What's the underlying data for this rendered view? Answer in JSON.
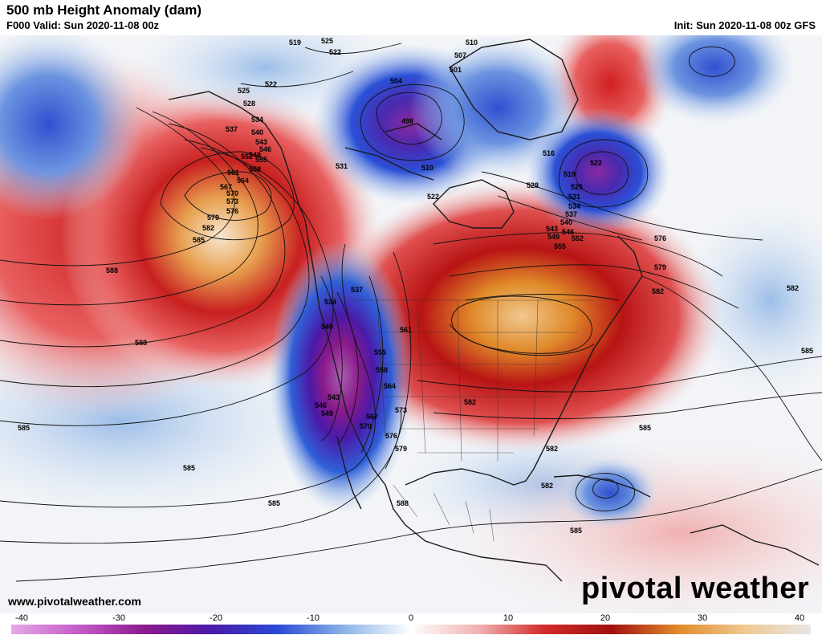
{
  "header": {
    "title": "500 mb Height Anomaly (dam)",
    "valid": "F000 Valid: Sun 2020-11-08 00z",
    "init": "Init: Sun 2020-11-08 00z GFS"
  },
  "footer": {
    "website": "www.pivotalweather.com",
    "brand": "pivotal weather"
  },
  "map": {
    "contour_labels": [
      "519",
      "525",
      "522",
      "522",
      "525",
      "528",
      "531",
      "534",
      "537",
      "540",
      "543",
      "546",
      "549",
      "552",
      "555",
      "558",
      "561",
      "564",
      "567",
      "570",
      "573",
      "576",
      "579",
      "582",
      "585",
      "588",
      "588",
      "585",
      "510",
      "507",
      "501",
      "504",
      "498",
      "510",
      "516",
      "519",
      "522",
      "528",
      "531",
      "534",
      "537",
      "540",
      "543",
      "546",
      "549",
      "552",
      "555",
      "522",
      "525",
      "576",
      "579",
      "582",
      "585",
      "582",
      "585",
      "537",
      "534",
      "540",
      "543",
      "546",
      "549",
      "555",
      "558",
      "561",
      "564",
      "567",
      "570",
      "573",
      "576",
      "579",
      "582",
      "582",
      "582",
      "585",
      "585",
      "588",
      "585"
    ],
    "anomaly_centers": [
      {
        "kind": "positive",
        "name": "NE Pacific ridge"
      },
      {
        "kind": "positive",
        "name": "Great Lakes ridge"
      },
      {
        "kind": "negative",
        "name": "Western US trough"
      },
      {
        "kind": "negative",
        "name": "Baffin Bay low"
      },
      {
        "kind": "negative",
        "name": "Labrador low"
      },
      {
        "kind": "negative",
        "name": "Caribbean low"
      }
    ]
  },
  "colorbar": {
    "ticks": [
      "-40",
      "-30",
      "-20",
      "-10",
      "0",
      "10",
      "20",
      "30",
      "40"
    ],
    "min": -40,
    "max": 40,
    "stops": [
      "#e6a8e6",
      "#c45cc8",
      "#8c1a8c",
      "#4a1aa8",
      "#2a4ad6",
      "#8cb4e6",
      "#ffffff",
      "#f0b4b4",
      "#d42a2a",
      "#a01010",
      "#e08a2a",
      "#f0c890",
      "#e6e6e6"
    ]
  }
}
